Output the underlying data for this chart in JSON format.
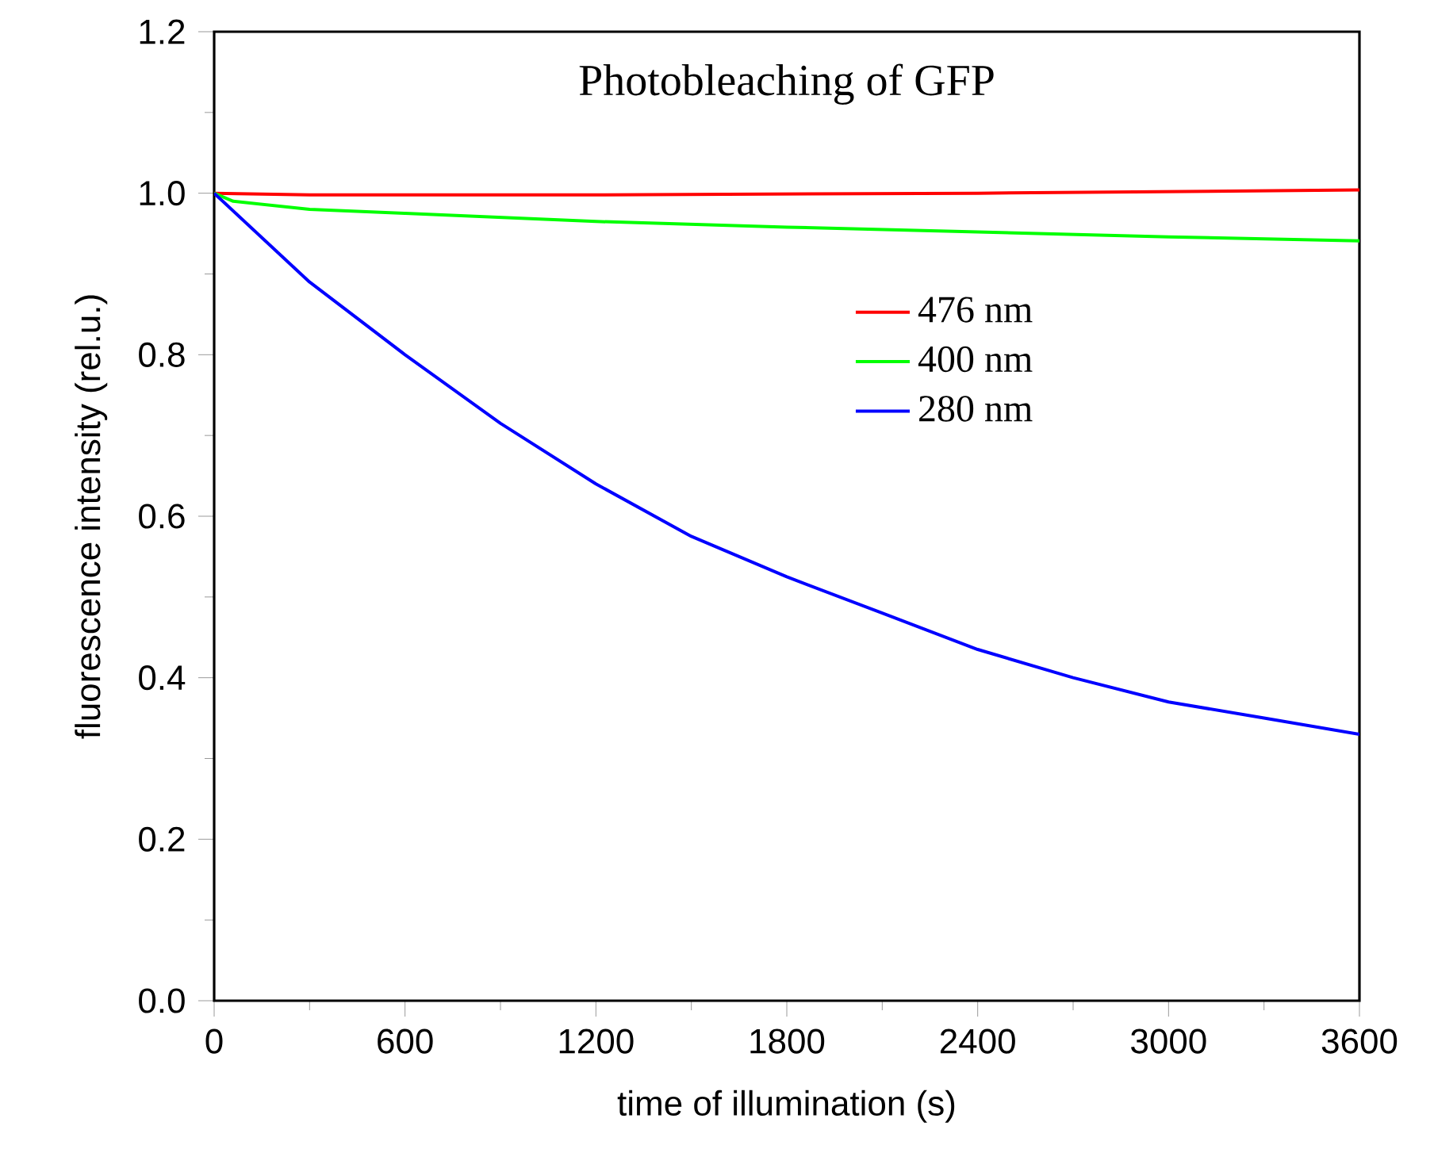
{
  "chart_data": {
    "type": "line",
    "title": "Photobleaching of GFP",
    "xlabel": "time of illumination (s)",
    "ylabel": "fluorescence intensity (rel.u.)",
    "xlim": [
      0,
      3600
    ],
    "ylim": [
      0,
      1.2
    ],
    "xticks": [
      0,
      600,
      1200,
      1800,
      2400,
      3000,
      3600
    ],
    "yticks": [
      {
        "value": 0,
        "label": "0.0"
      },
      {
        "value": 0.2,
        "label": "0.2"
      },
      {
        "value": 0.4,
        "label": "0.4"
      },
      {
        "value": 0.6,
        "label": "0.6"
      },
      {
        "value": 0.8,
        "label": "0.8"
      },
      {
        "value": 1.0,
        "label": "1.0"
      },
      {
        "value": 1.2,
        "label": "1.2"
      }
    ],
    "legend": "right",
    "grid": false,
    "marker": "none",
    "line_style": "solid",
    "series": [
      {
        "name": "476 nm",
        "color": "#ff0000",
        "x": [
          0,
          300,
          1200,
          2400,
          3600
        ],
        "values": [
          1.0,
          0.998,
          0.998,
          1.0,
          1.004
        ]
      },
      {
        "name": "400 nm",
        "color": "#00ff00",
        "x": [
          0,
          60,
          300,
          600,
          1200,
          1800,
          2400,
          3000,
          3600
        ],
        "values": [
          1.0,
          0.99,
          0.98,
          0.975,
          0.965,
          0.958,
          0.952,
          0.946,
          0.941
        ]
      },
      {
        "name": "280 nm",
        "color": "#0000ff",
        "x": [
          0,
          300,
          600,
          900,
          1200,
          1500,
          1800,
          2100,
          2400,
          2700,
          3000,
          3300,
          3600
        ],
        "values": [
          1.0,
          0.89,
          0.8,
          0.715,
          0.64,
          0.575,
          0.525,
          0.48,
          0.435,
          0.4,
          0.37,
          0.35,
          0.33
        ]
      }
    ]
  }
}
